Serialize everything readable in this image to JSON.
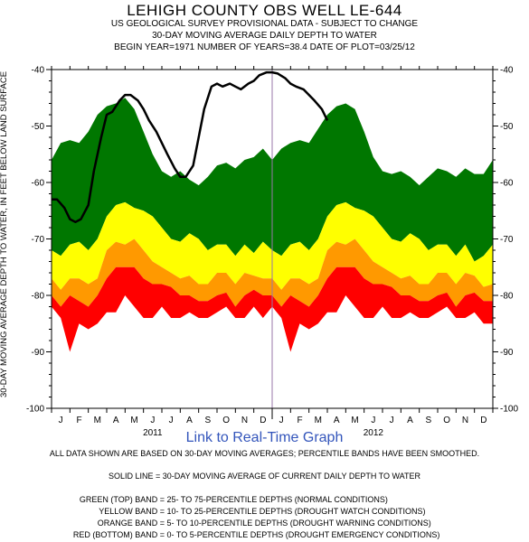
{
  "title": "LEHIGH COUNTY OBS WELL LE-644",
  "subtitle_lines": [
    "US GEOLOGICAL SURVEY PROVISIONAL DATA - SUBJECT TO CHANGE",
    "30-DAY MOVING AVERAGE DAILY DEPTH TO WATER",
    "BEGIN YEAR=1971 NUMBER OF YEARS=38.4 DATE OF PLOT=03/25/12"
  ],
  "link_text": "Link to Real-Time Graph",
  "notes": [
    "ALL DATA SHOWN ARE BASED ON 30-DAY MOVING AVERAGES; PERCENTILE BANDS HAVE BEEN SMOOTHED.",
    "SOLID LINE = 30-DAY MOVING AVERAGE OF CURRENT DAILY DEPTH TO WATER"
  ],
  "legend": [
    {
      "key": "GREEN (TOP) BAND =",
      "text": "25- TO 75-PERCENTILE DEPTHS (NORMAL CONDITIONS)",
      "color": "#007700"
    },
    {
      "key": "YELLOW BAND =",
      "text": "10- TO 25-PERCENTILE DEPTHS (DROUGHT WATCH CONDITIONS)",
      "color": "#ffff00"
    },
    {
      "key": "ORANGE BAND =",
      "text": "5- TO 10-PERCENTILE DEPTHS (DROUGHT WARNING CONDITIONS)",
      "color": "#ff9900"
    },
    {
      "key": "RED (BOTTOM) BAND =",
      "text": "0- TO 5-PERCENTILE DEPTHS (DROUGHT EMERGENCY CONDITIONS)",
      "color": "#ff0000"
    }
  ],
  "chart_data": {
    "type": "area",
    "ylabel": "30-DAY MOVING AVERAGE DEPTH TO WATER, IN FEET BELOW LAND SURFACE",
    "xlabel": "",
    "ylim": [
      -100,
      -40
    ],
    "y_ticks": [
      -40,
      -50,
      -60,
      -70,
      -80,
      -90,
      -100
    ],
    "x_tick_labels": [
      "J",
      "F",
      "M",
      "A",
      "M",
      "J",
      "J",
      "A",
      "S",
      "O",
      "N",
      "D",
      "J",
      "F",
      "M",
      "A",
      "M",
      "J",
      "J",
      "A",
      "S",
      "O",
      "N",
      "D"
    ],
    "year_labels": [
      "2011",
      "2012"
    ],
    "x_unit": "month index (0 = start of Jan 2011)",
    "xlim": [
      0,
      24
    ],
    "grid": false,
    "current_date_line": 12,
    "band_colors": {
      "green": "#007700",
      "yellow": "#ffff00",
      "orange": "#ff9900",
      "red": "#ff0000"
    },
    "bands": {
      "x": [
        0,
        0.5,
        1,
        1.5,
        2,
        2.5,
        3,
        3.5,
        4,
        4.5,
        5,
        5.5,
        6,
        6.5,
        7,
        7.5,
        8,
        8.5,
        9,
        9.5,
        10,
        10.5,
        11,
        11.5,
        12,
        12.5,
        13,
        13.5,
        14,
        14.5,
        15,
        15.5,
        16,
        16.5,
        17,
        17.5,
        18,
        18.5,
        19,
        19.5,
        20,
        20.5,
        21,
        21.5,
        22,
        22.5,
        23,
        23.5,
        24
      ],
      "p75": [
        -56,
        -53,
        -52.5,
        -53,
        -51,
        -48,
        -46.5,
        -46,
        -45,
        -47,
        -51,
        -55,
        -58,
        -59,
        -58,
        -59.5,
        -60.5,
        -59,
        -57,
        -56.5,
        -57.5,
        -56,
        -55.5,
        -54,
        -56,
        -54,
        -53,
        -52.5,
        -53,
        -50.5,
        -48,
        -46.5,
        -46,
        -47,
        -51,
        -55.5,
        -58,
        -58.5,
        -58,
        -59,
        -60.5,
        -59,
        -57.5,
        -58,
        -59,
        -57.5,
        -58.5,
        -58.5,
        -56
      ],
      "p25": [
        -72,
        -73,
        -71,
        -70.5,
        -72,
        -70,
        -66,
        -64,
        -63.5,
        -64.5,
        -65,
        -66,
        -68,
        -70,
        -70.5,
        -69,
        -70,
        -72,
        -71,
        -71,
        -73,
        -71,
        -72.5,
        -70.5,
        -72,
        -73,
        -71,
        -70.5,
        -72,
        -70,
        -66,
        -64,
        -63.5,
        -64.5,
        -65,
        -66,
        -68,
        -70,
        -70.5,
        -69,
        -70,
        -72,
        -71,
        -71,
        -73,
        -71,
        -74,
        -73,
        -71
      ],
      "p10": [
        -77,
        -79,
        -77,
        -77,
        -78,
        -77,
        -72,
        -70.5,
        -71,
        -70,
        -72,
        -74,
        -75,
        -76,
        -77,
        -76.5,
        -78,
        -78,
        -76,
        -76,
        -78,
        -76,
        -76.5,
        -77,
        -77,
        -79,
        -77,
        -77,
        -78,
        -77,
        -72,
        -70.5,
        -71,
        -70,
        -72,
        -74,
        -75,
        -76,
        -77,
        -76.5,
        -78,
        -78,
        -76,
        -76,
        -78,
        -76,
        -76.5,
        -78.5,
        -78
      ],
      "p5": [
        -80,
        -82,
        -80,
        -81,
        -82,
        -80,
        -77,
        -75,
        -75,
        -75,
        -77,
        -78,
        -78,
        -78.5,
        -80,
        -80,
        -81,
        -81,
        -80,
        -79.5,
        -82,
        -80,
        -79,
        -80,
        -80,
        -82,
        -80,
        -81,
        -82,
        -80,
        -77,
        -75,
        -75,
        -75,
        -77,
        -78,
        -78,
        -78.5,
        -80,
        -80,
        -81,
        -81,
        -80,
        -79.5,
        -82,
        -80,
        -79.5,
        -81,
        -81
      ],
      "p0": [
        -82,
        -84,
        -90,
        -85,
        -86,
        -85,
        -83,
        -83,
        -80,
        -82,
        -84,
        -84,
        -82,
        -84,
        -84,
        -83,
        -84,
        -84,
        -83,
        -82,
        -84,
        -84,
        -82,
        -84,
        -82,
        -84,
        -90,
        -85,
        -86,
        -85,
        -83,
        -83,
        -80,
        -82,
        -84,
        -84,
        -82,
        -84,
        -84,
        -83,
        -84,
        -84,
        -83,
        -82,
        -84,
        -84,
        -83,
        -85,
        -85
      ]
    },
    "series": [
      {
        "x": [
          0,
          0.3,
          0.7,
          1,
          1.3,
          1.6,
          2,
          2.3,
          2.7,
          3,
          3.3,
          3.7,
          4,
          4.3,
          4.7,
          5,
          5.3,
          5.7,
          6,
          6.3,
          6.7,
          7,
          7.3,
          7.7,
          8,
          8.3,
          8.7,
          9,
          9.3,
          9.7,
          10,
          10.3,
          10.7,
          11,
          11.3,
          11.7,
          12,
          12.3,
          12.7,
          13,
          13.3,
          13.7,
          14,
          14.3,
          14.7,
          15
        ],
        "values": [
          -63,
          -63,
          -64.5,
          -66.5,
          -67,
          -66.5,
          -64,
          -58,
          -52,
          -48,
          -47.5,
          -45.5,
          -44.5,
          -44.5,
          -45.5,
          -47,
          -49,
          -51,
          -53,
          -55,
          -57.5,
          -59,
          -59,
          -57,
          -52,
          -47,
          -43,
          -42.5,
          -43,
          -42.5,
          -43,
          -43.5,
          -42.5,
          -42,
          -41,
          -40.5,
          -40.5,
          -40.7,
          -41.5,
          -42.5,
          -43,
          -43.5,
          -44.5,
          -45.5,
          -47,
          -49
        ]
      }
    ]
  }
}
